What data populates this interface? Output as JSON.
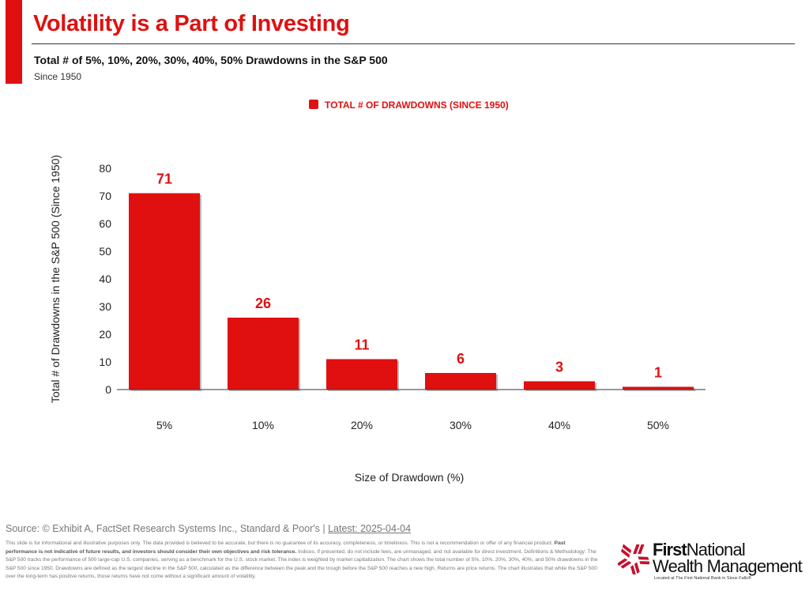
{
  "header": {
    "title": "Volatility is a Part of Investing",
    "subtitle": "Total # of 5%, 10%, 20%, 30%, 40%, 50% Drawdowns in the S&P 500",
    "since": "Since 1950"
  },
  "chart_data": {
    "type": "bar",
    "title": "",
    "legend": [
      "TOTAL # OF DRAWDOWNS (SINCE 1950)"
    ],
    "legend_position": "top-center",
    "categories": [
      "5%",
      "10%",
      "20%",
      "30%",
      "40%",
      "50%"
    ],
    "values": [
      71,
      26,
      11,
      6,
      3,
      1
    ],
    "xlabel": "Size of Drawdown (%)",
    "ylabel": "Total # of Drawdowns in the S&P 500 (Since 1950)",
    "ylim": [
      0,
      80
    ],
    "yticks": [
      0,
      10,
      20,
      30,
      40,
      50,
      60,
      70,
      80
    ],
    "grid": false,
    "color": "#e01010"
  },
  "footer": {
    "source": "Source: © Exhibit A, FactSet Research Systems Inc., Standard & Poor's | ",
    "latest": "Latest: 2025-04-04",
    "disclaimer_1": "This slide is for informational and illustrative purposes only. The data provided is believed to be accurate, but there is no guarantee of its accuracy, completeness, or timeliness. This is not a recommendation or offer of any financial product. ",
    "disclaimer_bold": "Past performance is not indicative of future results, and investors should consider their own objectives and risk tolerance.",
    "disclaimer_2": " Indices, if presented, do not include fees, are unmanaged, and not available for direct investment. Definitions & Methodology: The S&P 500 tracks the performance of 500 large-cap U.S. companies, serving as a benchmark for the U.S. stock market. The index is weighted by market capitalization. The chart shows the total number of 5%, 10%, 20%, 30%, 40%, and 50% drawdowns in the S&P 500 since 1950. Drawdowns are defined as the largest decline in the S&P 500, calculated as the difference between the peak and the trough before the S&P 500 reaches a new high. Returns are price returns. The chart illustrates that while the S&P 500 over the long-term has positive returns, those returns have not come without a significant amount of volatility."
  },
  "logo": {
    "first": "First",
    "national": "National",
    "line2": "Wealth Management",
    "located": "Located at The First National Bank in Sioux Falls®"
  }
}
